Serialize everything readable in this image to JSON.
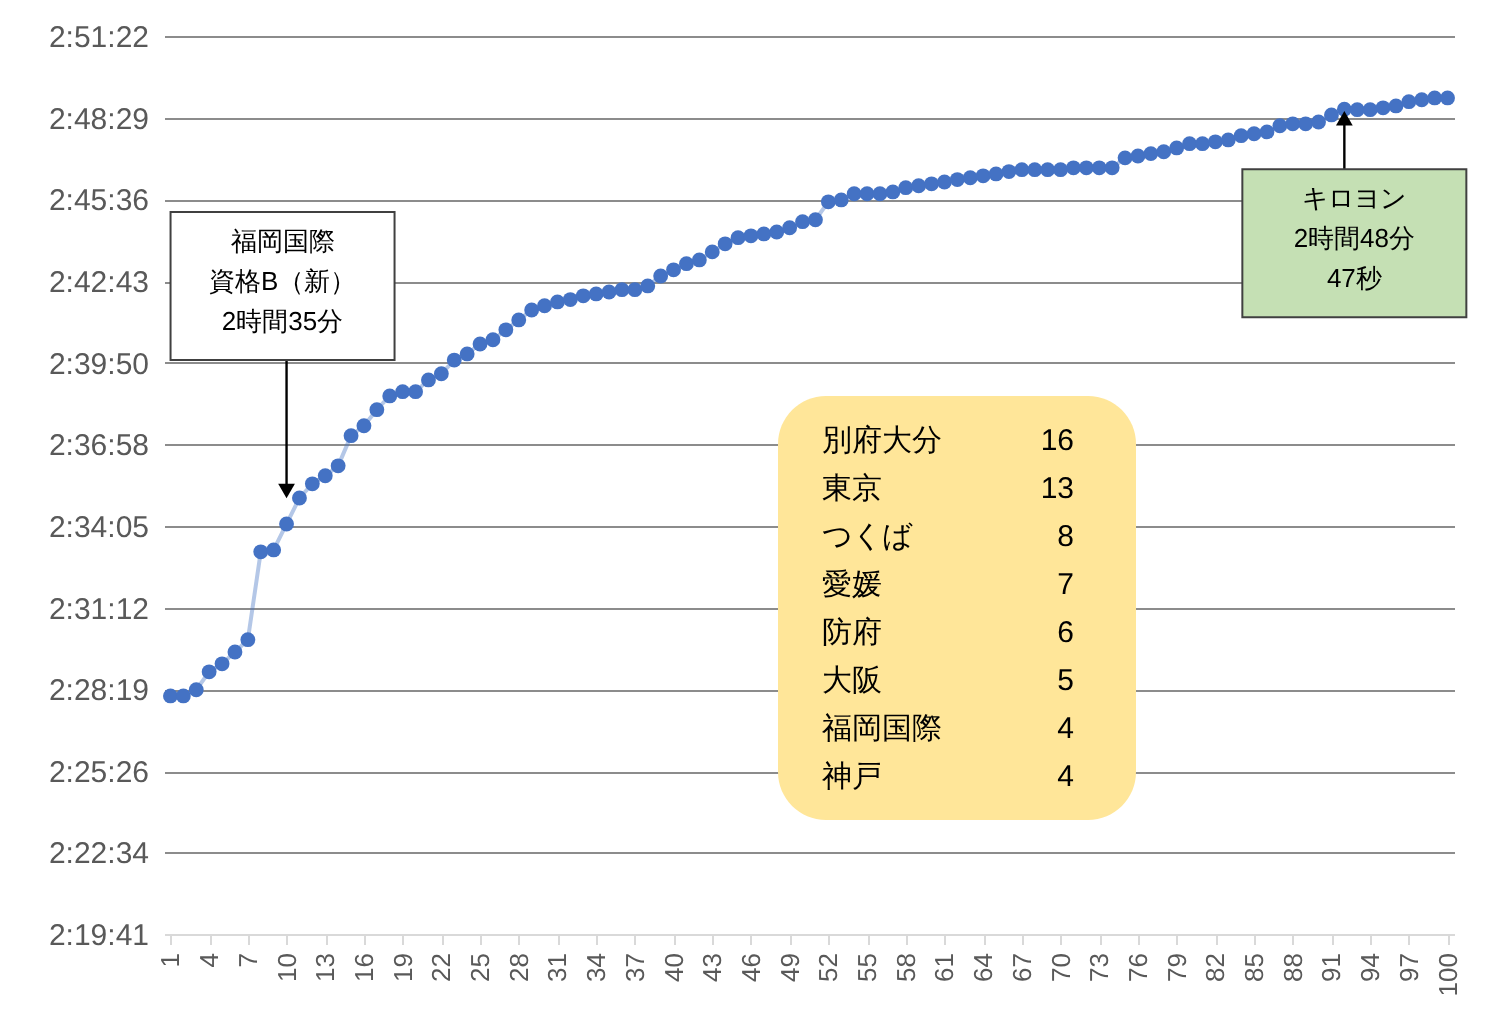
{
  "chart_data": {
    "type": "line",
    "x": [
      1,
      2,
      3,
      4,
      5,
      6,
      7,
      8,
      9,
      10,
      11,
      12,
      13,
      14,
      15,
      16,
      17,
      18,
      19,
      20,
      21,
      22,
      23,
      24,
      25,
      26,
      27,
      28,
      29,
      30,
      31,
      32,
      33,
      34,
      35,
      36,
      37,
      38,
      39,
      40,
      41,
      42,
      43,
      44,
      45,
      46,
      47,
      48,
      49,
      50,
      51,
      52,
      53,
      54,
      55,
      56,
      57,
      58,
      59,
      60,
      61,
      62,
      63,
      64,
      65,
      66,
      67,
      68,
      69,
      70,
      71,
      72,
      73,
      74,
      75,
      76,
      77,
      78,
      79,
      80,
      81,
      82,
      83,
      84,
      85,
      86,
      87,
      88,
      89,
      90,
      91,
      92,
      93,
      94,
      95,
      96,
      97,
      98,
      99,
      100
    ],
    "series": [
      {
        "color": "#4472c4",
        "values": [
          8885,
          8885,
          8898,
          8936,
          8953,
          8978,
          9004,
          9190,
          9194,
          9249,
          9304,
          9334,
          9351,
          9372,
          9436,
          9457,
          9491,
          9520,
          9529,
          9529,
          9554,
          9567,
          9596,
          9609,
          9630,
          9639,
          9660,
          9681,
          9702,
          9711,
          9719,
          9724,
          9732,
          9736,
          9740,
          9745,
          9745,
          9753,
          9774,
          9787,
          9800,
          9808,
          9825,
          9842,
          9855,
          9859,
          9863,
          9867,
          9876,
          9889,
          9893,
          9931,
          9935,
          9948,
          9948,
          9948,
          9952,
          9961,
          9965,
          9969,
          9973,
          9978,
          9982,
          9986,
          9990,
          9995,
          9999,
          9999,
          9999,
          9999,
          10003,
          10003,
          10003,
          10003,
          10024,
          10028,
          10033,
          10037,
          10045,
          10054,
          10054,
          10058,
          10062,
          10071,
          10075,
          10079,
          10092,
          10096,
          10096,
          10100,
          10115,
          10127,
          10126,
          10126,
          10130,
          10134,
          10143,
          10147,
          10151,
          10151
        ]
      }
    ],
    "xlim": [
      0.5,
      100.5
    ],
    "xticks": [
      1,
      4,
      7,
      10,
      13,
      16,
      19,
      22,
      25,
      28,
      31,
      34,
      37,
      40,
      43,
      46,
      49,
      52,
      55,
      58,
      61,
      64,
      67,
      70,
      73,
      76,
      79,
      82,
      85,
      88,
      91,
      94,
      97,
      100
    ],
    "ylim": [
      8381,
      10282
    ],
    "yticks": [
      {
        "value": 8381,
        "label": "2:19:41"
      },
      {
        "value": 8554,
        "label": "2:22:34"
      },
      {
        "value": 8726,
        "label": "2:25:26"
      },
      {
        "value": 8899,
        "label": "2:28:19"
      },
      {
        "value": 9072,
        "label": "2:31:12"
      },
      {
        "value": 9245,
        "label": "2:34:05"
      },
      {
        "value": 9418,
        "label": "2:36:58"
      },
      {
        "value": 9590,
        "label": "2:39:50"
      },
      {
        "value": 9763,
        "label": "2:42:43"
      },
      {
        "value": 9936,
        "label": "2:45:36"
      },
      {
        "value": 10109,
        "label": "2:48:29"
      },
      {
        "value": 10282,
        "label": "2:51:22"
      }
    ],
    "grid": "y",
    "marker": "circle",
    "annotations": [
      {
        "text": "福岡国際資格B（新）2時間35分",
        "x": 10,
        "y": 9300
      },
      {
        "text": "キロヨン2時間48分47秒",
        "x": 92,
        "y": 10127
      },
      "別府大分 16",
      "東京 13",
      "つくば 8",
      "愛媛 7",
      "防府 6",
      "大阪 5",
      "福岡国際 4",
      "神戸 4"
    ]
  }
}
